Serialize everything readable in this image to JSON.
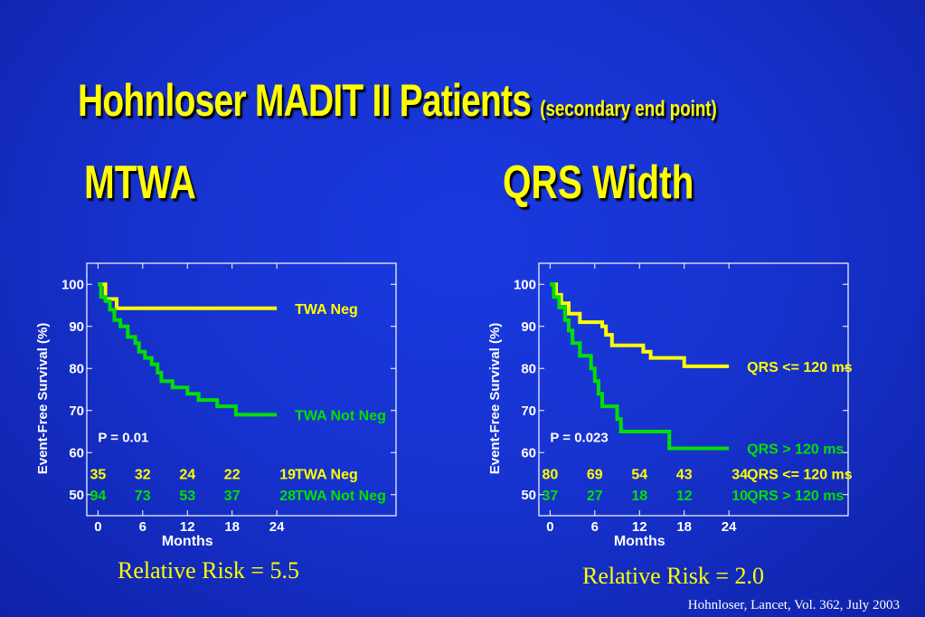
{
  "title": "Hohnloser MADIT II Patients",
  "title_sub": "(secondary end point)",
  "subheads": {
    "left": "MTWA",
    "right": "QRS Width"
  },
  "citation": "Hohnloser, Lancet, Vol. 362, July 2003",
  "colors": {
    "background": "#1733d0",
    "yellow": "#ffff00",
    "green": "#00e000",
    "white": "#ffffff"
  },
  "chart_data": [
    {
      "type": "line",
      "title": "",
      "xlabel": "Months",
      "ylabel": "Event-Free Survival (%)",
      "xticks": [
        "0",
        "6",
        "12",
        "18",
        "24"
      ],
      "yticks": [
        "50",
        "60",
        "70",
        "80",
        "90",
        "100"
      ],
      "xlim": [
        -1.5,
        40
      ],
      "ylim": [
        45,
        105
      ],
      "p_value": "P = 0.01",
      "series": [
        {
          "name": "TWA Neg",
          "color": "#ffff00",
          "points": [
            [
              0,
              100
            ],
            [
              1,
              96.5
            ],
            [
              2.5,
              94.3
            ],
            [
              24,
              94.3
            ]
          ],
          "at_risk": [
            "35",
            "32",
            "24",
            "22",
            "19"
          ]
        },
        {
          "name": "TWA Not Neg",
          "color": "#00e000",
          "points": [
            [
              0,
              100
            ],
            [
              0.4,
              97
            ],
            [
              1,
              96
            ],
            [
              1.6,
              94
            ],
            [
              2.2,
              91.5
            ],
            [
              3,
              90
            ],
            [
              4,
              87.5
            ],
            [
              5,
              86
            ],
            [
              5.5,
              84
            ],
            [
              6.3,
              82.5
            ],
            [
              7.2,
              81
            ],
            [
              8,
              79
            ],
            [
              8.5,
              77
            ],
            [
              10,
              75.5
            ],
            [
              12,
              74
            ],
            [
              13.5,
              72.5
            ],
            [
              16,
              71
            ],
            [
              18.5,
              69
            ],
            [
              24,
              69
            ]
          ],
          "at_risk": [
            "94",
            "73",
            "53",
            "37",
            "28"
          ]
        }
      ],
      "relative_risk": "Relative Risk = 5.5"
    },
    {
      "type": "line",
      "title": "",
      "xlabel": "Months",
      "ylabel": "Event-Free Survival (%)",
      "xticks": [
        "0",
        "6",
        "12",
        "18",
        "24"
      ],
      "yticks": [
        "50",
        "60",
        "70",
        "80",
        "90",
        "100"
      ],
      "xlim": [
        -1.5,
        40
      ],
      "ylim": [
        45,
        105
      ],
      "p_value": "P = 0.023",
      "series": [
        {
          "name": "QRS <= 120 ms",
          "color": "#ffff00",
          "points": [
            [
              0,
              100
            ],
            [
              0.8,
              97.5
            ],
            [
              1.5,
              95.5
            ],
            [
              2.5,
              93
            ],
            [
              4,
              91
            ],
            [
              7,
              90
            ],
            [
              7.5,
              88
            ],
            [
              8.3,
              85.5
            ],
            [
              12.5,
              84
            ],
            [
              13.5,
              82.5
            ],
            [
              18,
              80.5
            ],
            [
              24,
              80.5
            ]
          ],
          "at_risk": [
            "80",
            "69",
            "54",
            "43",
            "34"
          ]
        },
        {
          "name": "QRS > 120 ms",
          "color": "#00e000",
          "points": [
            [
              0,
              100
            ],
            [
              0.5,
              97
            ],
            [
              1.2,
              94.5
            ],
            [
              2,
              91.5
            ],
            [
              2.5,
              89
            ],
            [
              3,
              86
            ],
            [
              4,
              83
            ],
            [
              5.5,
              80
            ],
            [
              6,
              77
            ],
            [
              6.5,
              74
            ],
            [
              7,
              71
            ],
            [
              9,
              68
            ],
            [
              9.5,
              65
            ],
            [
              16,
              61
            ],
            [
              24,
              61
            ]
          ],
          "at_risk": [
            "37",
            "27",
            "18",
            "12",
            "10"
          ]
        }
      ],
      "relative_risk": "Relative Risk = 2.0"
    }
  ]
}
